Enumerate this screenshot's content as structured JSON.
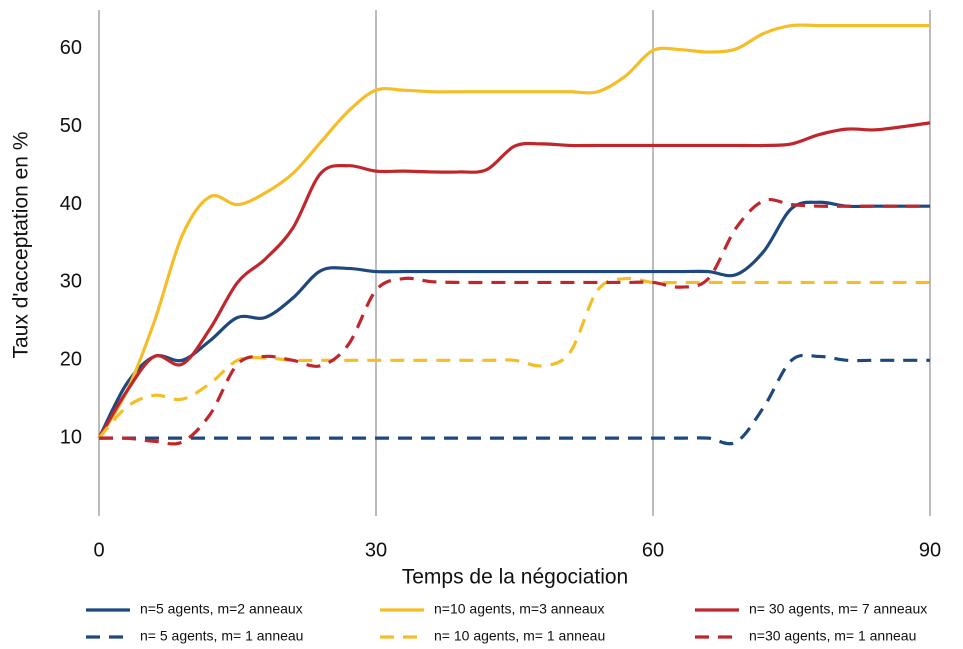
{
  "chart_data": {
    "type": "line",
    "xlabel": "Temps de la négociation",
    "ylabel": "Taux d'acceptation en %",
    "x": [
      0,
      3,
      6,
      9,
      12,
      15,
      18,
      21,
      24,
      27,
      30,
      33,
      36,
      39,
      42,
      45,
      48,
      51,
      54,
      57,
      60,
      63,
      66,
      69,
      72,
      75,
      78,
      81,
      84,
      87,
      90
    ],
    "xlim": [
      0,
      90
    ],
    "xticks": [
      0,
      30,
      60,
      90
    ],
    "ylim": [
      0,
      65
    ],
    "yticks": [
      10,
      20,
      30,
      40,
      50,
      60
    ],
    "grid": true,
    "series": [
      {
        "name": "n=5 agents, m=2 anneaux",
        "color": "#1f497d",
        "dash": false,
        "values": [
          10,
          17,
          20.5,
          20,
          22.5,
          25.5,
          25.5,
          28,
          31.5,
          31.8,
          31.4,
          31.4,
          31.4,
          31.4,
          31.4,
          31.4,
          31.4,
          31.4,
          31.4,
          31.4,
          31.4,
          31.4,
          31.4,
          31,
          34,
          39.5,
          40.3,
          39.8,
          39.8,
          39.8,
          39.8
        ]
      },
      {
        "name": "n=10 agents, m=3 anneaux",
        "color": "#f5be28",
        "dash": false,
        "values": [
          10,
          16,
          25,
          36,
          41,
          40,
          41.5,
          44,
          48,
          52,
          54.7,
          54.7,
          54.5,
          54.5,
          54.5,
          54.5,
          54.5,
          54.5,
          54.5,
          56.5,
          59.8,
          59.9,
          59.6,
          60,
          62,
          63,
          63,
          63,
          63,
          63,
          63
        ]
      },
      {
        "name": "n= 30 agents, m= 7 anneaux",
        "color": "#c0272d",
        "dash": false,
        "values": [
          10,
          16,
          20.5,
          19.5,
          24,
          30,
          33,
          37,
          44,
          45,
          44.3,
          44.3,
          44.2,
          44.2,
          44.5,
          47.5,
          47.8,
          47.6,
          47.6,
          47.6,
          47.6,
          47.6,
          47.6,
          47.6,
          47.6,
          47.8,
          49,
          49.7,
          49.6,
          50,
          50.5
        ]
      },
      {
        "name": "n= 5 agents, m= 1 anneau",
        "color": "#1f497d",
        "dash": true,
        "values": [
          10,
          10,
          10,
          10,
          10,
          10,
          10,
          10,
          10,
          10,
          10,
          10,
          10,
          10,
          10,
          10,
          10,
          10,
          10,
          10,
          10,
          10,
          10,
          9.5,
          14,
          20,
          20.5,
          20,
          20,
          20,
          20
        ]
      },
      {
        "name": "n= 10 agents, m= 1 anneau",
        "color": "#f5be28",
        "dash": true,
        "values": [
          10,
          14,
          15.5,
          15,
          17,
          20,
          20.3,
          20,
          20,
          20,
          20,
          20,
          20,
          20,
          20,
          20,
          19.3,
          21,
          29,
          30.5,
          30,
          30,
          30,
          30,
          30,
          30,
          30,
          30,
          30,
          30,
          30
        ]
      },
      {
        "name": "n=30 agents, m= 1 anneau",
        "color": "#c0272d",
        "dash": true,
        "values": [
          10,
          10,
          9.6,
          9.5,
          13,
          19.5,
          20.5,
          20,
          19.3,
          22,
          29,
          30.5,
          30.1,
          30,
          30,
          30,
          30,
          30,
          30,
          30,
          30,
          29.4,
          30.5,
          37,
          40.5,
          40,
          39.8,
          39.8,
          39.8,
          39.8,
          39.8
        ]
      }
    ]
  }
}
